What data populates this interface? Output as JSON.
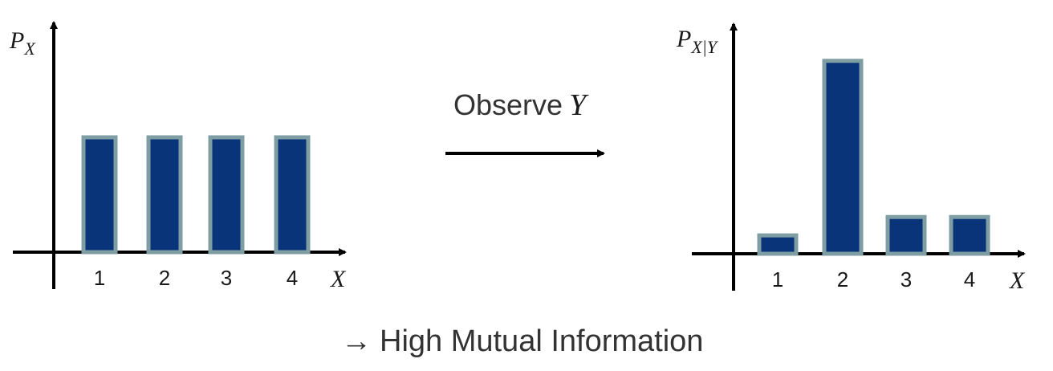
{
  "colors": {
    "bar_fill": "#0a347a",
    "bar_stroke": "#7f9ea3",
    "axis": "#000000",
    "text": "#333333"
  },
  "chart_data": [
    {
      "type": "bar",
      "title": "",
      "ylabel_main": "P",
      "ylabel_sub": "X",
      "xlabel": "X",
      "categories": [
        "1",
        "2",
        "3",
        "4"
      ],
      "values": [
        0.25,
        0.25,
        0.25,
        0.25
      ],
      "ylim": [
        0,
        0.5
      ],
      "grid": false
    },
    {
      "type": "bar",
      "title": "",
      "ylabel_main": "P",
      "ylabel_sub": "X|Y",
      "xlabel": "X",
      "categories": [
        "1",
        "2",
        "3",
        "4"
      ],
      "values": [
        0.04,
        0.42,
        0.08,
        0.08
      ],
      "ylim": [
        0,
        0.5
      ],
      "grid": false
    }
  ],
  "transition": {
    "observe_text": "Observe",
    "observe_var": "Y"
  },
  "conclusion": {
    "arrow": "→",
    "text": "High Mutual Information"
  }
}
